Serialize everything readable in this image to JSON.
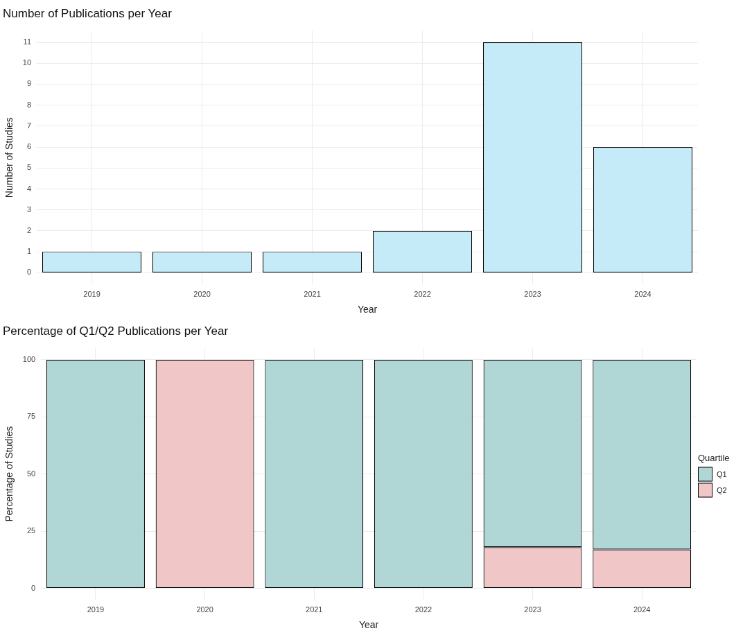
{
  "chart_data": [
    {
      "type": "bar",
      "title": "Number of Publications per Year",
      "xlabel": "Year",
      "ylabel": "Number of Studies",
      "categories": [
        "2019",
        "2020",
        "2021",
        "2022",
        "2023",
        "2024"
      ],
      "series": [
        {
          "color": "#c6ebf8",
          "values": [
            1,
            1,
            1,
            2,
            11,
            6
          ]
        }
      ],
      "ylim": [
        -0.55,
        11.55
      ],
      "yticks": [
        0,
        1,
        2,
        3,
        4,
        5,
        6,
        7,
        8,
        9,
        10,
        11
      ],
      "grid": true,
      "legend": false
    },
    {
      "type": "bar",
      "title": "Percentage of Q1/Q2 Publications per Year",
      "xlabel": "Year",
      "ylabel": "Percentage of Studies",
      "legend_title": "Quartile",
      "categories": [
        "2019",
        "2020",
        "2021",
        "2022",
        "2023",
        "2024"
      ],
      "stacked": true,
      "series": [
        {
          "name": "Q2",
          "color": "#f1c6c7",
          "values": [
            0,
            100,
            0,
            0,
            18,
            17
          ]
        },
        {
          "name": "Q1",
          "color": "#b0d6d6",
          "values": [
            100,
            0,
            100,
            100,
            82,
            83
          ]
        }
      ],
      "ylim": [
        -5,
        105
      ],
      "yticks": [
        0,
        25,
        50,
        75,
        100
      ],
      "grid": true,
      "legend": "right"
    }
  ]
}
